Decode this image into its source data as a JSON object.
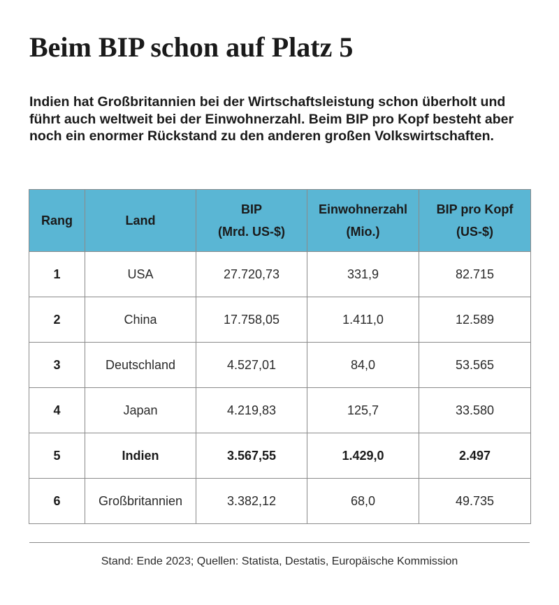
{
  "title": "Beim BIP schon auf Platz 5",
  "intro": "Indien hat Großbritannien bei der Wirtschaftsleistung schon überholt und führt auch weltweit bei der Einwohnerzahl. Beim BIP pro Kopf besteht aber noch ein enormer Rückstand zu den anderen großen Volkswirtschaften.",
  "table": {
    "header_color": "#5ab6d4",
    "headers": {
      "rank": "Rang",
      "country": "Land",
      "gdp_line1": "BIP",
      "gdp_line2": "(Mrd. US-$)",
      "pop_line1": "Einwohnerzahl",
      "pop_line2": "(Mio.)",
      "gdppc_line1": "BIP pro Kopf",
      "gdppc_line2": "(US-$)"
    },
    "rows": [
      {
        "rank": "1",
        "country": "USA",
        "gdp": "27.720,73",
        "population": "331,9",
        "gdp_per_capita": "82.715",
        "highlight": false
      },
      {
        "rank": "2",
        "country": "China",
        "gdp": "17.758,05",
        "population": "1.411,0",
        "gdp_per_capita": "12.589",
        "highlight": false
      },
      {
        "rank": "3",
        "country": "Deutschland",
        "gdp": "4.527,01",
        "population": "84,0",
        "gdp_per_capita": "53.565",
        "highlight": false
      },
      {
        "rank": "4",
        "country": "Japan",
        "gdp": "4.219,83",
        "population": "125,7",
        "gdp_per_capita": "33.580",
        "highlight": false
      },
      {
        "rank": "5",
        "country": "Indien",
        "gdp": "3.567,55",
        "population": "1.429,0",
        "gdp_per_capita": "2.497",
        "highlight": true
      },
      {
        "rank": "6",
        "country": "Großbritannien",
        "gdp": "3.382,12",
        "population": "68,0",
        "gdp_per_capita": "49.735",
        "highlight": false
      }
    ]
  },
  "source": "Stand: Ende 2023; Quellen: Statista, Destatis, Europäische Kommission"
}
